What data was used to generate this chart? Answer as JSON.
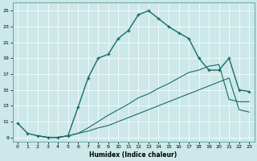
{
  "xlabel": "Humidex (Indice chaleur)",
  "background_color": "#cce8e8",
  "grid_color": "#b8d8d8",
  "line_color": "#1a6b6b",
  "xlim": [
    -0.5,
    23.5
  ],
  "ylim": [
    8.5,
    26.0
  ],
  "xticks": [
    0,
    1,
    2,
    3,
    4,
    5,
    6,
    7,
    8,
    9,
    10,
    11,
    12,
    13,
    14,
    15,
    16,
    17,
    18,
    19,
    20,
    21,
    22,
    23
  ],
  "yticks": [
    9,
    11,
    13,
    15,
    17,
    19,
    21,
    23,
    25
  ],
  "line1_x": [
    0,
    1,
    2,
    3,
    4,
    5,
    6,
    7,
    8,
    9,
    10,
    11,
    12,
    13,
    14,
    15,
    16,
    17,
    18,
    19,
    20,
    21,
    22,
    23
  ],
  "line1_y": [
    10.8,
    9.5,
    9.2,
    9.0,
    9.0,
    9.2,
    12.8,
    16.5,
    19.0,
    19.5,
    21.5,
    22.5,
    24.5,
    25.0,
    24.0,
    23.0,
    22.2,
    21.5,
    19.0,
    17.5,
    17.5,
    19.0,
    15.0,
    14.8
  ],
  "line2_x": [
    2,
    3,
    4,
    5,
    6,
    7,
    8,
    9,
    10,
    11,
    12,
    13,
    14,
    15,
    16,
    17,
    18,
    19,
    20,
    21,
    22,
    23
  ],
  "line2_y": [
    9.2,
    9.0,
    9.0,
    9.2,
    9.5,
    10.2,
    11.0,
    11.8,
    12.5,
    13.2,
    14.0,
    14.5,
    15.2,
    15.8,
    16.5,
    17.2,
    17.5,
    18.0,
    18.2,
    13.8,
    13.5,
    13.5
  ],
  "line3_x": [
    2,
    3,
    4,
    5,
    6,
    7,
    8,
    9,
    10,
    11,
    12,
    13,
    14,
    15,
    16,
    17,
    18,
    19,
    20,
    21,
    22,
    23
  ],
  "line3_y": [
    9.2,
    9.0,
    9.0,
    9.2,
    9.5,
    9.8,
    10.2,
    10.5,
    11.0,
    11.5,
    12.0,
    12.5,
    13.0,
    13.5,
    14.0,
    14.5,
    15.0,
    15.5,
    16.0,
    16.5,
    12.5,
    12.2
  ]
}
